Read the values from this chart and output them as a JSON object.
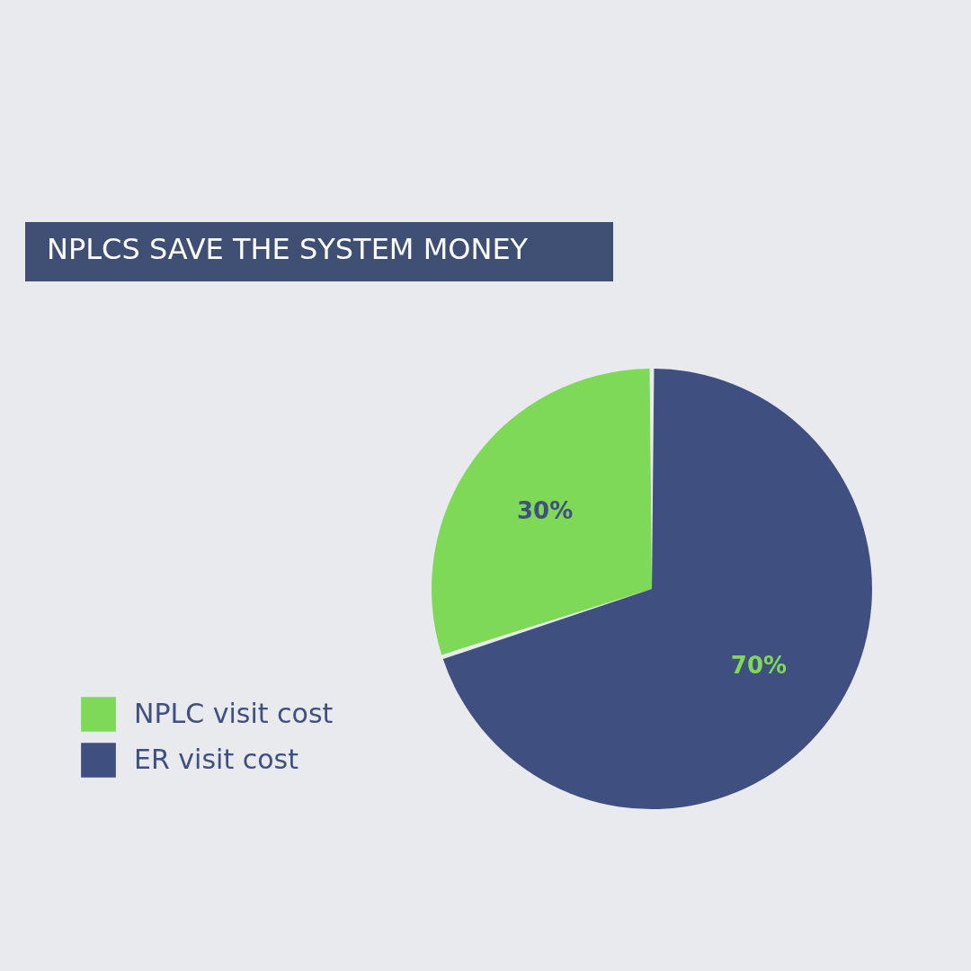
{
  "chart_data": {
    "type": "pie",
    "title": "NPLCS SAVE THE SYSTEM MONEY",
    "categories": [
      "NPLC visit cost",
      "ER visit cost"
    ],
    "values": [
      30,
      70
    ],
    "colors": [
      "#7ed957",
      "#3f4f80"
    ],
    "value_labels": [
      "30%",
      "70%"
    ],
    "legend": "bottom left"
  }
}
